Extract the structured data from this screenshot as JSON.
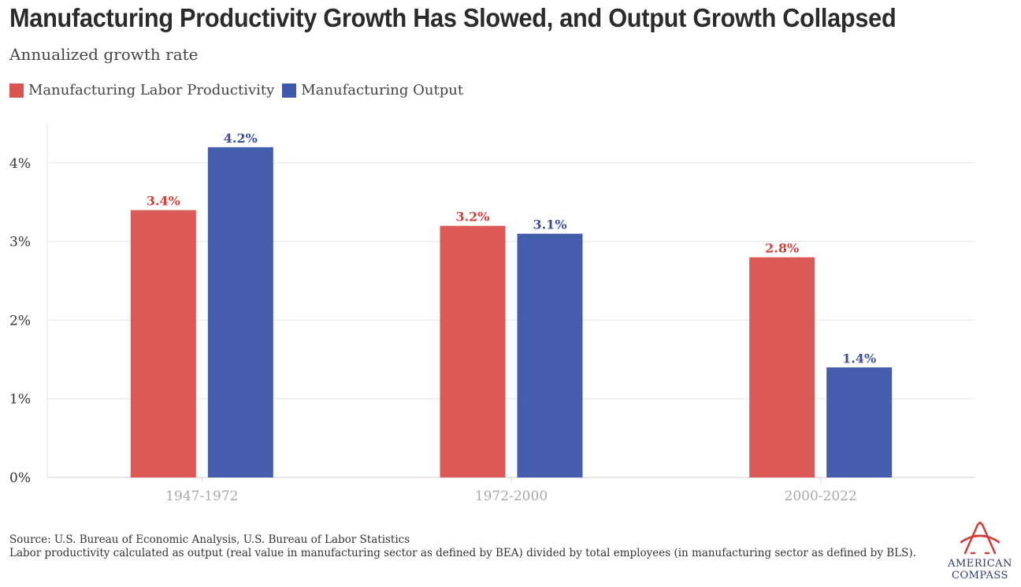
{
  "header": {
    "title": "Manufacturing Productivity Growth Has Slowed, and Output Growth Collapsed",
    "subtitle": "Annualized growth rate"
  },
  "colors": {
    "productivity": "#d9534f",
    "output": "#3f58aa",
    "productivity_label": "#d0413c",
    "output_label": "#3b4f9e",
    "grid": "#e6e6e6",
    "tick_x": "#a9a9a9"
  },
  "chart_data": {
    "type": "bar",
    "categories": [
      "1947-1972",
      "1972-2000",
      "2000-2022"
    ],
    "series": [
      {
        "name": "Manufacturing Labor Productivity",
        "values": [
          3.4,
          3.2,
          2.8
        ],
        "labels": [
          "3.4%",
          "3.2%",
          "2.8%"
        ]
      },
      {
        "name": "Manufacturing Output",
        "values": [
          4.2,
          3.1,
          1.4
        ],
        "labels": [
          "4.2%",
          "3.1%",
          "1.4%"
        ]
      }
    ],
    "yticks": [
      0,
      1,
      2,
      3,
      4
    ],
    "ytick_labels": [
      "0%",
      "1%",
      "2%",
      "3%",
      "4%"
    ],
    "ylim": [
      0,
      4.5
    ],
    "grid": true,
    "legend_position": "top-left"
  },
  "footer": {
    "source": "Source: U.S. Bureau of Economic Analysis, U.S. Bureau of Labor Statistics",
    "note": "Labor productivity calculated as output (real value in manufacturing sector as defined by BEA) divided by total employees (in manufacturing sector as defined by BLS)."
  },
  "logo": {
    "line1": "AMERICAN",
    "line2": "COMPASS"
  }
}
